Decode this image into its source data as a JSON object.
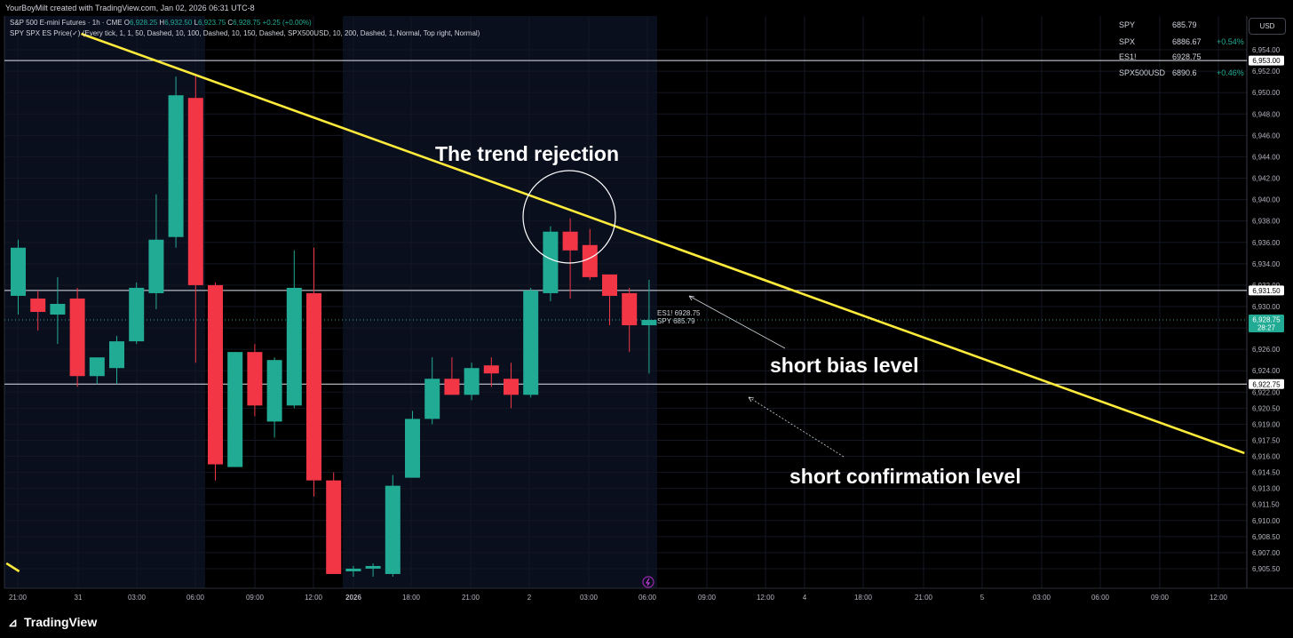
{
  "header": {
    "credit": "YourBoyMilt created with TradingView.com, Jan 02, 2026 06:31 UTC-8",
    "symbol_line": {
      "name": "S&P 500 E-mini Futures · 1h · CME",
      "o_label": "O",
      "o": "6,928.25",
      "h_label": "H",
      "h": "6,932.50",
      "l_label": "L",
      "l": "6,923.75",
      "c_label": "C",
      "c": "6,928.75",
      "change": "+0.25 (+0.00%)"
    },
    "indicator_line": "SPY SPX ES Price(✓) (Every tick, 1, 1, 50, Dashed, 10, 100, Dashed, 10, 150, Dashed, SPX500USD, 10, 200, Dashed, 1, Normal, Top right, Normal)"
  },
  "legend": [
    {
      "symbol": "SPY",
      "value": "685.79",
      "change": ""
    },
    {
      "symbol": "SPX",
      "value": "6886.67",
      "change": "+0.54%"
    },
    {
      "symbol": "ES1!",
      "value": "6928.75",
      "change": ""
    },
    {
      "symbol": "SPX500USD",
      "value": "6890.6",
      "change": "+0.46%"
    }
  ],
  "currency_button": "USD",
  "annotations": {
    "trend_rejection": "The trend rejection",
    "short_bias": "short bias level",
    "short_confirmation": "short confirmation level"
  },
  "inline_labels": {
    "es": "ES1! 6928.75",
    "spy": "SPY 685.79"
  },
  "brand": "TradingView",
  "colors": {
    "up": "#22ab94",
    "down": "#f23645",
    "trendline": "#ffeb3b",
    "session_bg": "#0a0f1e",
    "price_tag": "#22ab94"
  },
  "chart_data": {
    "type": "candlestick",
    "ylim": [
      6904.5,
      6955.0
    ],
    "x_ticks": [
      "21:00",
      "31",
      "03:00",
      "06:00",
      "09:00",
      "12:00",
      "2026",
      "18:00",
      "21:00",
      "2",
      "03:00",
      "06:00",
      "09:00",
      "12:00",
      "4",
      "18:00",
      "21:00",
      "5",
      "03:00",
      "06:00",
      "09:00",
      "12:00"
    ],
    "y_ticks": [
      "6,954.00",
      "6,952.00",
      "6,950.00",
      "6,948.00",
      "6,946.00",
      "6,944.00",
      "6,942.00",
      "6,940.00",
      "6,938.00",
      "6,936.00",
      "6,934.00",
      "6,932.00",
      "6,930.00",
      "6,928.00",
      "6,926.00",
      "6,924.00",
      "6,922.00",
      "6,920.50",
      "6,919.00",
      "6,917.50",
      "6,916.00",
      "6,914.50",
      "6,913.00",
      "6,911.50",
      "6,910.00",
      "6,908.50",
      "6,907.00",
      "6,905.50"
    ],
    "candles": [
      {
        "o": 6931.0,
        "h": 6936.25,
        "l": 6929.25,
        "c": 6935.5
      },
      {
        "o": 6930.75,
        "h": 6931.5,
        "l": 6927.75,
        "c": 6929.5
      },
      {
        "o": 6929.25,
        "h": 6932.75,
        "l": 6926.5,
        "c": 6930.25
      },
      {
        "o": 6930.75,
        "h": 6931.75,
        "l": 6922.5,
        "c": 6923.5
      },
      {
        "o": 6923.5,
        "h": 6925.0,
        "l": 6922.75,
        "c": 6925.25
      },
      {
        "o": 6924.25,
        "h": 6927.25,
        "l": 6922.75,
        "c": 6926.75
      },
      {
        "o": 6926.75,
        "h": 6932.25,
        "l": 6926.5,
        "c": 6931.75
      },
      {
        "o": 6931.25,
        "h": 6940.5,
        "l": 6929.75,
        "c": 6936.25
      },
      {
        "o": 6936.5,
        "h": 6951.5,
        "l": 6935.5,
        "c": 6949.75
      },
      {
        "o": 6949.5,
        "h": 6951.75,
        "l": 6924.75,
        "c": 6932.0
      },
      {
        "o": 6932.0,
        "h": 6932.25,
        "l": 6913.75,
        "c": 6915.25
      },
      {
        "o": 6915.0,
        "h": 6925.75,
        "l": 6915.0,
        "c": 6925.75
      },
      {
        "o": 6925.75,
        "h": 6926.5,
        "l": 6919.75,
        "c": 6920.75
      },
      {
        "o": 6919.25,
        "h": 6925.25,
        "l": 6917.75,
        "c": 6925.0
      },
      {
        "o": 6920.75,
        "h": 6935.25,
        "l": 6920.5,
        "c": 6931.75
      },
      {
        "o": 6931.25,
        "h": 6935.5,
        "l": 6912.25,
        "c": 6913.75
      },
      {
        "o": 6913.75,
        "h": 6914.5,
        "l": 6905.0,
        "c": 6905.0
      },
      {
        "o": 6905.25,
        "h": 6905.75,
        "l": 6904.75,
        "c": 6905.5
      },
      {
        "o": 6905.5,
        "h": 6906.0,
        "l": 6904.75,
        "c": 6905.75
      },
      {
        "o": 6905.0,
        "h": 6914.25,
        "l": 6904.75,
        "c": 6913.25
      },
      {
        "o": 6914.0,
        "h": 6920.25,
        "l": 6914.0,
        "c": 6919.5
      },
      {
        "o": 6919.5,
        "h": 6925.25,
        "l": 6919.0,
        "c": 6923.25
      },
      {
        "o": 6923.25,
        "h": 6925.25,
        "l": 6921.75,
        "c": 6921.75
      },
      {
        "o": 6921.75,
        "h": 6924.75,
        "l": 6921.25,
        "c": 6924.25
      },
      {
        "o": 6924.5,
        "h": 6925.25,
        "l": 6922.5,
        "c": 6923.75
      },
      {
        "o": 6923.25,
        "h": 6924.75,
        "l": 6920.5,
        "c": 6921.75
      },
      {
        "o": 6921.75,
        "h": 6931.75,
        "l": 6921.5,
        "c": 6931.5
      },
      {
        "o": 6931.25,
        "h": 6937.5,
        "l": 6930.5,
        "c": 6937.0
      },
      {
        "o": 6937.0,
        "h": 6938.25,
        "l": 6930.75,
        "c": 6935.25
      },
      {
        "o": 6935.75,
        "h": 6937.25,
        "l": 6932.5,
        "c": 6932.75
      },
      {
        "o": 6933.0,
        "h": 6933.0,
        "l": 6928.25,
        "c": 6931.0
      },
      {
        "o": 6931.25,
        "h": 6931.75,
        "l": 6925.75,
        "c": 6928.25
      },
      {
        "o": 6928.25,
        "h": 6932.5,
        "l": 6923.75,
        "c": 6928.75
      }
    ],
    "horizontal_levels": [
      {
        "value": 6953.0,
        "label": "6,953.00"
      },
      {
        "value": 6931.5,
        "label": "6,931.50"
      },
      {
        "value": 6922.75,
        "label": "6,922.75"
      }
    ],
    "last_price": {
      "value": 6928.75,
      "label": "6,928.75",
      "countdown": "28:27"
    },
    "trendline": {
      "from": {
        "bar": 3.2,
        "price": 6955.5
      },
      "to": {
        "bar": 62.2,
        "price": 6916.3
      }
    },
    "trendline_tail": {
      "from": {
        "bar": -0.6,
        "price": 6906.0
      },
      "to": {
        "bar": 0.05,
        "price": 6905.25
      }
    }
  }
}
